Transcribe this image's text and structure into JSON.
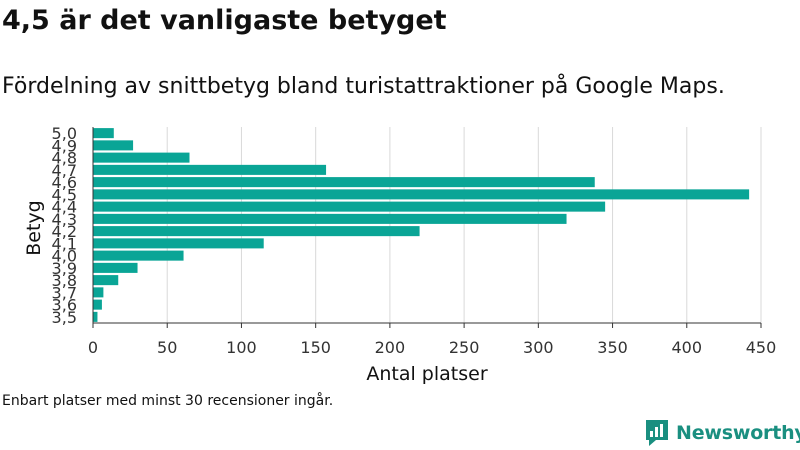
{
  "header": {
    "title": "4,5 är det vanligaste betyget",
    "subtitle": "Fördelning av snittbetyg bland turistattraktioner på Google Maps."
  },
  "footer": {
    "note": "Enbart platser med minst 30 recensioner ingår.",
    "brand": "Newsworthy"
  },
  "colors": {
    "bar": "#0aa596",
    "brand": "#1a8f80"
  },
  "chart_data": {
    "type": "bar",
    "orientation": "horizontal",
    "xlabel": "Antal platser",
    "ylabel": "Betyg",
    "categories": [
      "5,0",
      "4,9",
      "4,8",
      "4,7",
      "4,6",
      "4,5",
      "4,4",
      "4,3",
      "4,2",
      "4,1",
      "4,0",
      "3,9",
      "3,8",
      "3,7",
      "3,6",
      "3,5"
    ],
    "values": [
      14,
      27,
      65,
      157,
      338,
      442,
      345,
      319,
      220,
      115,
      61,
      30,
      17,
      7,
      6,
      3
    ],
    "xlim": [
      0,
      450
    ],
    "xticks": [
      0,
      50,
      100,
      150,
      200,
      250,
      300,
      350,
      400,
      450
    ],
    "grid": "vertical"
  }
}
